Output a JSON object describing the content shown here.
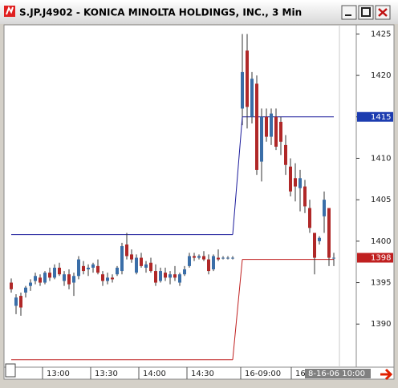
{
  "chart_data": {
    "type": "candlestick",
    "title": "S.JP.J4902 - KONICA MINOLTA HOLDINGS, INC., 3 Min",
    "up_color": "#3a6ea8",
    "down_color": "#b02828",
    "high_line_color": "#1c1c9c",
    "low_line_color": "#c02020",
    "ylim": [
      1384.8,
      1426.1
    ],
    "yticks": [
      1390,
      1395,
      1400,
      1405,
      1410,
      1415,
      1420,
      1425
    ],
    "price_markers": [
      {
        "value": 1415,
        "color": "#1c3cb0"
      },
      {
        "value": 1398,
        "color": "#c02020"
      }
    ],
    "xticks": [
      "13:00",
      "13:30",
      "14:00",
      "14:30",
      "16-09:00",
      "16"
    ],
    "current_time": "8-16-06 10:00",
    "sessions": [
      {
        "high_line": 1400.8,
        "low_line": 1385.7,
        "candles": [
          [
            1395,
            1395.5,
            1393.8,
            1394.2
          ],
          [
            1392.2,
            1393.6,
            1391.2,
            1393.2
          ],
          [
            1393.4,
            1393.8,
            1391,
            1392
          ],
          [
            1393.8,
            1394.6,
            1393.2,
            1394.4
          ],
          [
            1394.6,
            1395.4,
            1394,
            1395
          ],
          [
            1395.2,
            1396.2,
            1394.8,
            1395.8
          ],
          [
            1395.6,
            1396,
            1394.6,
            1395
          ],
          [
            1395,
            1396.4,
            1394.8,
            1396.2
          ],
          [
            1396.2,
            1396.8,
            1395.2,
            1395.6
          ],
          [
            1395.6,
            1397.2,
            1395.4,
            1396.8
          ],
          [
            1396.8,
            1397.4,
            1395.8,
            1396
          ],
          [
            1395.2,
            1396.4,
            1394.6,
            1396
          ],
          [
            1396,
            1396.6,
            1394.2,
            1394.8
          ],
          [
            1395,
            1396.2,
            1393.4,
            1395.8
          ],
          [
            1395.8,
            1398.2,
            1395.4,
            1397.8
          ],
          [
            1397,
            1397.6,
            1396,
            1396.4
          ],
          [
            1396.6,
            1397.2,
            1395.8,
            1396.8
          ],
          [
            1396.8,
            1397.4,
            1396.2,
            1397.2
          ],
          [
            1397,
            1397.8,
            1396,
            1396.2
          ],
          [
            1396,
            1396.4,
            1394.6,
            1395.2
          ],
          [
            1395.2,
            1396.2,
            1394.8,
            1395.6
          ],
          [
            1395.6,
            1396,
            1395,
            1395.4
          ],
          [
            1396,
            1397,
            1395.8,
            1396.8
          ],
          [
            1396.4,
            1399.8,
            1396,
            1399.4
          ],
          [
            1399.6,
            1401,
            1397.8,
            1398.2
          ],
          [
            1398.4,
            1399,
            1397.4,
            1397.8
          ],
          [
            1396.2,
            1398.4,
            1396,
            1398
          ],
          [
            1398,
            1398.6,
            1396.8,
            1397
          ],
          [
            1396.8,
            1397.6,
            1396.2,
            1397.2
          ],
          [
            1397.4,
            1398,
            1396.2,
            1396.4
          ],
          [
            1396.4,
            1397.2,
            1394.6,
            1395
          ],
          [
            1395.2,
            1396.8,
            1395,
            1396.4
          ],
          [
            1396.2,
            1396.8,
            1395.2,
            1395.6
          ],
          [
            1395.6,
            1396.4,
            1394.8,
            1396
          ],
          [
            1396,
            1397,
            1395.2,
            1395.6
          ],
          [
            1395,
            1396.2,
            1394.6,
            1396
          ],
          [
            1396,
            1397,
            1395.8,
            1396.6
          ],
          [
            1397,
            1398.6,
            1396.8,
            1398.2
          ],
          [
            1398.2,
            1398.6,
            1397.6,
            1398
          ],
          [
            1398,
            1398.4,
            1397.8,
            1398.2
          ],
          [
            1398.2,
            1398.8,
            1397.6,
            1397.8
          ],
          [
            1397.8,
            1398.4,
            1396,
            1396.4
          ],
          [
            1396.6,
            1398.4,
            1396.4,
            1398.2
          ],
          [
            1398,
            1399,
            1397.6,
            1397.8
          ],
          [
            1398,
            1398.2,
            1397.8,
            1398
          ],
          [
            1398,
            1398.2,
            1397.8,
            1398
          ],
          [
            1398,
            1398.2,
            1397.8,
            1398
          ]
        ]
      },
      {
        "high_line": 1415,
        "low_line": 1397.8,
        "candles": [
          [
            1416,
            1425,
            1414,
            1420.4
          ],
          [
            1423,
            1425,
            1413.6,
            1416.2
          ],
          [
            1415,
            1420.4,
            1414.2,
            1419.6
          ],
          [
            1419,
            1420,
            1408,
            1408.6
          ],
          [
            1409.6,
            1416,
            1407.2,
            1415
          ],
          [
            1415,
            1416,
            1412,
            1412.6
          ],
          [
            1412.6,
            1416,
            1411.6,
            1415.4
          ],
          [
            1415,
            1416,
            1411,
            1411.4
          ],
          [
            1414.4,
            1415,
            1410.4,
            1412
          ],
          [
            1411.6,
            1412.8,
            1408,
            1409.2
          ],
          [
            1409,
            1410,
            1405.4,
            1406
          ],
          [
            1407.6,
            1409.4,
            1404.8,
            1406.6
          ],
          [
            1406.4,
            1408.6,
            1403.6,
            1407.6
          ],
          [
            1406.6,
            1407.4,
            1403.4,
            1404.2
          ],
          [
            1404,
            1405,
            1401,
            1401.6
          ],
          [
            1401,
            1401,
            1396,
            1398
          ],
          [
            1400,
            1400.6,
            1399.6,
            1400.4
          ],
          [
            1403,
            1406,
            1401,
            1405
          ],
          [
            1404,
            1404,
            1397,
            1398
          ],
          [
            1398,
            1398.6,
            1397,
            1398
          ]
        ]
      }
    ]
  }
}
